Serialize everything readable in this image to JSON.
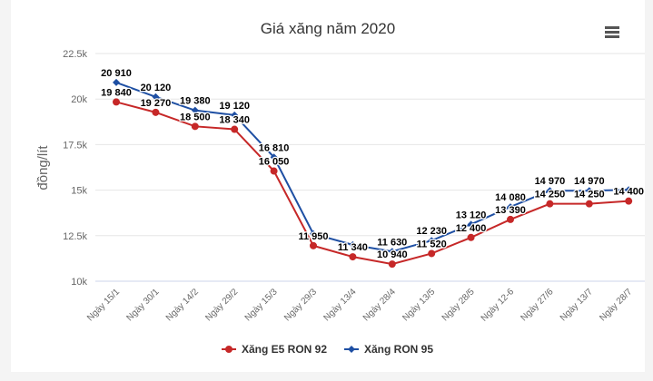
{
  "menu_icon": "hamburger-menu-icon",
  "chart_data": {
    "type": "line",
    "title": "Giá xăng năm 2020",
    "xlabel": "",
    "ylabel": "đồng/lít",
    "ylim": [
      10000,
      22500
    ],
    "yticks": [
      10000,
      12500,
      15000,
      17500,
      20000,
      22500
    ],
    "ytick_labels": [
      "10k",
      "12.5k",
      "15k",
      "17.5k",
      "20k",
      "22.5k"
    ],
    "grid": true,
    "legend": "bottom-center",
    "categories": [
      "Ngày 15/1",
      "Ngày 30/1",
      "Ngày 14/2",
      "Ngày 29/2",
      "Ngày 15/3",
      "Ngày 29/3",
      "Ngày 13/4",
      "Ngày 28/4",
      "Ngày 13/5",
      "Ngày 28/5",
      "Ngày 12-6",
      "Ngày 27/6",
      "Ngày 13/7",
      "Ngày 28/7"
    ],
    "series": [
      {
        "name": "Xăng E5 RON 92",
        "color": "#c62828",
        "marker": "circle",
        "values": [
          19840,
          19270,
          18500,
          18340,
          16050,
          11950,
          11340,
          10940,
          11520,
          12400,
          13390,
          14250,
          14250,
          14400
        ],
        "labels": [
          "19 840",
          "19 270",
          "18 500",
          "18 340",
          "16 050",
          "11 950",
          "11 340",
          "10 940",
          "11 520",
          "12 400",
          "13 390",
          "14 250",
          "14 250",
          "14 400"
        ]
      },
      {
        "name": "Xăng RON 95",
        "color": "#1e4fa3",
        "marker": "diamond",
        "values": [
          20910,
          20120,
          19380,
          19120,
          16810,
          12600,
          12000,
          11630,
          12230,
          13120,
          14080,
          14970,
          14970,
          15020
        ],
        "labels": [
          "20 910",
          "20 120",
          "19 380",
          "19 120",
          "16 810",
          null,
          null,
          "11 630",
          "12 230",
          "13 120",
          "14 080",
          "14 970",
          "14 970",
          null
        ]
      }
    ]
  }
}
